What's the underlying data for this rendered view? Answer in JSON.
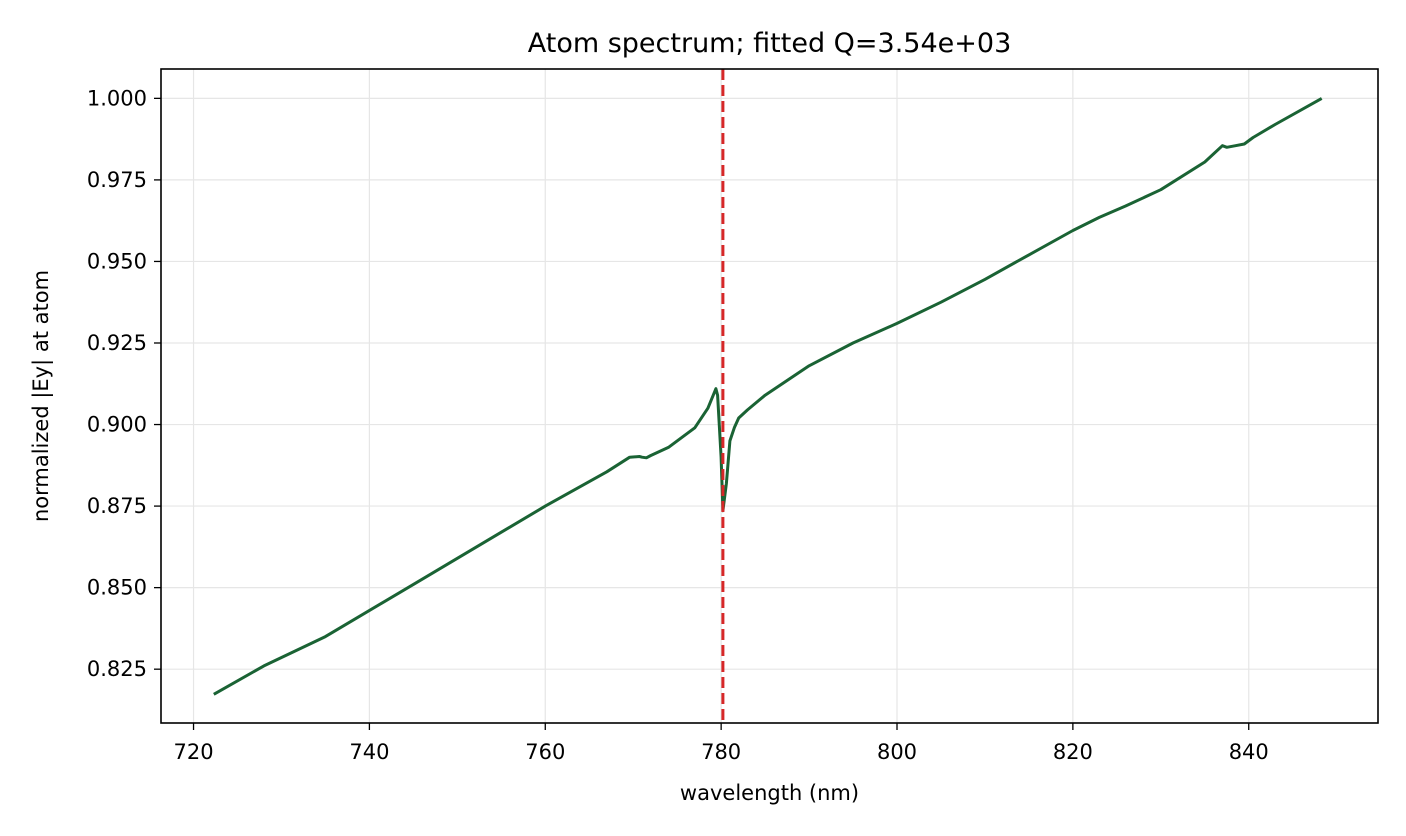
{
  "chart_data": {
    "type": "line",
    "title": "Atom spectrum; fitted Q=3.54e+03",
    "xlabel": "wavelength (nm)",
    "ylabel": "normalized |Ey| at atom",
    "xlim": [
      716.3,
      854.7
    ],
    "ylim": [
      0.8085,
      1.009
    ],
    "xticks": [
      720,
      740,
      760,
      780,
      800,
      820,
      840
    ],
    "xtick_labels": [
      "720",
      "740",
      "760",
      "780",
      "800",
      "820",
      "840"
    ],
    "yticks": [
      0.825,
      0.85,
      0.875,
      0.9,
      0.925,
      0.95,
      0.975,
      1.0
    ],
    "ytick_labels": [
      "0.825",
      "0.850",
      "0.875",
      "0.900",
      "0.925",
      "0.950",
      "0.975",
      "1.000"
    ],
    "grid": true,
    "series": [
      {
        "color": "#1a6334",
        "x": [
          722.3,
          728.0,
          735.0,
          745.0,
          755.0,
          760.0,
          767.0,
          769.6,
          770.7,
          771.0,
          771.5,
          772.0,
          774.0,
          777.0,
          778.5,
          779.4,
          779.6,
          780.0,
          780.2,
          780.6,
          781.0,
          781.5,
          782.0,
          783.0,
          785.0,
          790.0,
          795.0,
          800.0,
          805.0,
          810.0,
          815.0,
          820.0,
          823.0,
          826.0,
          830.0,
          835.0,
          837.0,
          837.5,
          838.5,
          839.5,
          840.5,
          843.0,
          848.3
        ],
        "y": [
          0.8173,
          0.826,
          0.835,
          0.851,
          0.867,
          0.875,
          0.8855,
          0.89,
          0.8902,
          0.89,
          0.8898,
          0.8905,
          0.893,
          0.899,
          0.905,
          0.911,
          0.909,
          0.89,
          0.8736,
          0.882,
          0.895,
          0.899,
          0.902,
          0.9045,
          0.909,
          0.918,
          0.925,
          0.931,
          0.9375,
          0.9445,
          0.952,
          0.9595,
          0.9635,
          0.967,
          0.972,
          0.9805,
          0.9855,
          0.985,
          0.9855,
          0.986,
          0.988,
          0.992,
          1.0
        ]
      },
      {
        "name": "",
        "color": "#d62728",
        "style": "dashed",
        "vertical_line_x": 780.2
      }
    ]
  }
}
